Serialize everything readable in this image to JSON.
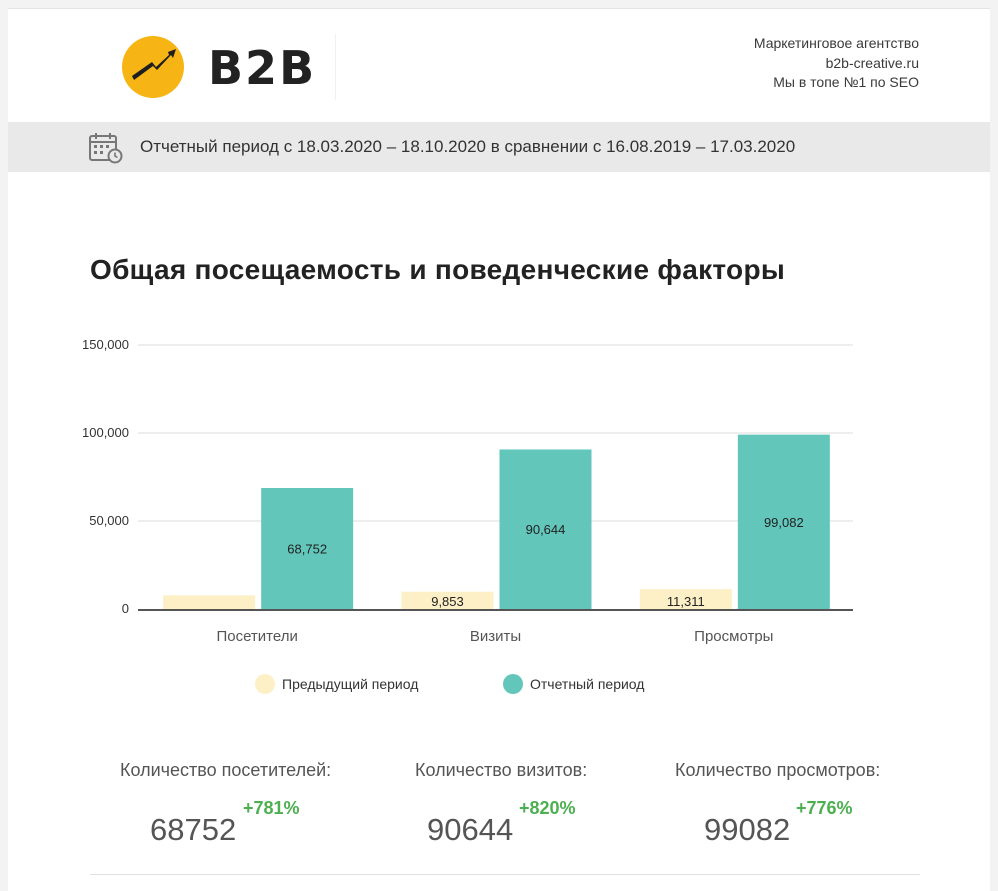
{
  "header": {
    "logo_text": "B2B",
    "agency_lines": [
      "Маркетинговое агентство",
      "b2b-creative.ru",
      "Мы в топе №1 по SEO"
    ]
  },
  "period": {
    "text": "Отчетный период с 18.03.2020 – 18.10.2020 в сравнении с 16.08.2019 – 17.03.2020",
    "icon": "calendar-clock-icon"
  },
  "colors": {
    "previous": "#fdf0c7",
    "current": "#63c6bb",
    "accent": "#f7b515",
    "positive": "#4caf50"
  },
  "chart_data": {
    "type": "bar",
    "title": "Общая посещаемость и поведенческие факторы",
    "categories": [
      "Посетители",
      "Визиты",
      "Просмотры"
    ],
    "series": [
      {
        "name": "Предыдущий период",
        "values": [
          7800,
          9853,
          11311
        ],
        "labels": [
          "",
          "9,853",
          "11,311"
        ]
      },
      {
        "name": "Отчетный период",
        "values": [
          68752,
          90644,
          99082
        ],
        "labels": [
          "68,752",
          "90,644",
          "99,082"
        ]
      }
    ],
    "ylim": [
      0,
      150000
    ],
    "yticks": [
      0,
      50000,
      100000,
      150000
    ],
    "ytick_labels": [
      "0",
      "50,000",
      "100,000",
      "150,000"
    ],
    "grid": true,
    "legend_position": "bottom"
  },
  "stats": [
    {
      "label": "Количество посетителей:",
      "value": "68752",
      "change": "+781%"
    },
    {
      "label": "Количество визитов:",
      "value": "90644",
      "change": "+820%"
    },
    {
      "label": "Количество просмотров:",
      "value": "99082",
      "change": "+776%"
    }
  ]
}
